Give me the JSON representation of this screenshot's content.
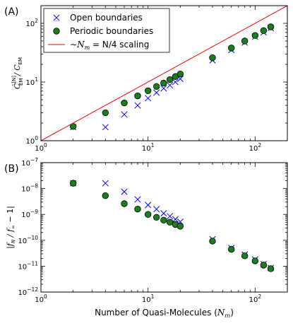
{
  "chart_data": [
    {
      "type": "scatter",
      "panel_label": "(A)",
      "xscale": "log",
      "yscale": "log",
      "xlim": [
        1,
        200
      ],
      "ylim": [
        1,
        200
      ],
      "grid": false,
      "legend_placement": "top-left",
      "ylabel": "Ĉ_EM^{[N]} / C_EM",
      "ylabel_parts": {
        "main": "Ĉ",
        "sup": "[N]",
        "sub": "EM",
        "rest": "/ C",
        "rest_sub": "EM"
      },
      "xticks": [
        1,
        10,
        100
      ],
      "xtick_labels": [
        "10^0",
        "10^1",
        "10^2"
      ],
      "yticks": [
        1,
        10,
        100
      ],
      "ytick_labels": [
        "10^0",
        "10^1",
        "10^2"
      ],
      "series": [
        {
          "name": "Open boundaries",
          "marker": "x",
          "color": "#0000ff",
          "x": [
            2,
            4,
            6,
            8,
            10,
            12,
            14,
            16,
            18,
            20,
            40,
            60,
            80,
            100,
            120,
            140
          ],
          "y": [
            1.7,
            1.7,
            2.8,
            4.0,
            5.3,
            6.6,
            7.8,
            8.8,
            10.0,
            11.3,
            23.5,
            35.0,
            47.0,
            59.0,
            70.0,
            83.0
          ]
        },
        {
          "name": "Periodic boundaries",
          "marker": "o",
          "color": "#1a7f1a",
          "x": [
            2,
            4,
            6,
            8,
            10,
            12,
            14,
            16,
            18,
            20,
            40,
            60,
            80,
            100,
            120,
            140
          ],
          "y": [
            1.75,
            3.0,
            4.4,
            5.8,
            7.1,
            8.4,
            9.6,
            11.0,
            12.4,
            13.7,
            26.0,
            38.0,
            50.0,
            62.0,
            75.0,
            87.0
          ]
        },
        {
          "name": "~N_m = N/4 scaling",
          "name_parts": {
            "pre": "∼",
            "var": "N",
            "sub": "m",
            "post": " = N/4 scaling"
          },
          "marker": "line",
          "color": "#ff0000",
          "x": [
            1,
            200
          ],
          "y": [
            1,
            200
          ]
        }
      ]
    },
    {
      "type": "scatter",
      "panel_label": "(B)",
      "xscale": "log",
      "yscale": "log",
      "xlim": [
        1,
        200
      ],
      "ylim": [
        1e-12,
        1e-07
      ],
      "grid": false,
      "ylabel": "|f_N / f_∞ − 1|",
      "ylabel_parts": {
        "l": "|f",
        "sub1": "N",
        "mid": "/ f",
        "sub2": "∞",
        "r": "− 1|"
      },
      "xlabel": "Number of Quasi-Molecules (N_m)",
      "xlabel_parts": {
        "text": "Number of Quasi-Molecules (",
        "var": "N",
        "sub": "m",
        "close": ")"
      },
      "xticks": [
        1,
        10,
        100
      ],
      "xtick_labels": [
        "10^0",
        "10^1",
        "10^2"
      ],
      "yticks": [
        1e-12,
        1e-11,
        1e-10,
        1e-09,
        1e-08,
        1e-07
      ],
      "ytick_labels": [
        "10^-12",
        "10^-11",
        "10^-10",
        "10^-9",
        "10^-8",
        "10^-7"
      ],
      "series": [
        {
          "name": "Open boundaries",
          "marker": "x",
          "color": "#0000ff",
          "x": [
            2,
            4,
            6,
            8,
            10,
            12,
            14,
            16,
            18,
            20,
            40,
            60,
            80,
            100,
            120,
            140
          ],
          "y": [
            1.6e-08,
            1.6e-08,
            7.5e-09,
            3.8e-09,
            2.3e-09,
            1.6e-09,
            1.1e-09,
            8.5e-10,
            6.5e-10,
            5.2e-10,
            1.1e-10,
            5e-11,
            2.8e-11,
            1.8e-11,
            1.2e-11,
            8.5e-12
          ]
        },
        {
          "name": "Periodic boundaries",
          "marker": "o",
          "color": "#1a7f1a",
          "x": [
            2,
            4,
            6,
            8,
            10,
            12,
            14,
            16,
            18,
            20,
            40,
            60,
            80,
            100,
            120,
            140
          ],
          "y": [
            1.6e-08,
            5.3e-09,
            2.6e-09,
            1.6e-09,
            1e-09,
            7.7e-10,
            6e-10,
            5e-10,
            4.1e-10,
            3.5e-10,
            9.3e-11,
            4.5e-11,
            2.5e-11,
            1.6e-11,
            1.1e-11,
            8e-12
          ]
        }
      ]
    }
  ]
}
